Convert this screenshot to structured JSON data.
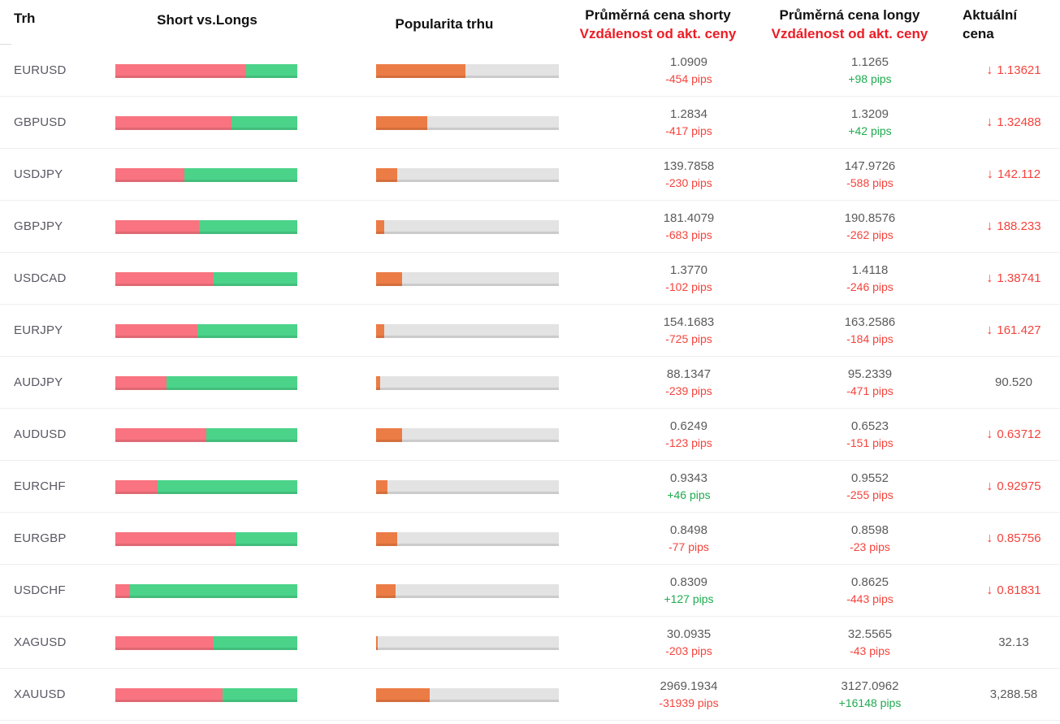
{
  "header": {
    "market": "Trh",
    "short_vs_longs": "Short vs.Longs",
    "popularity": "Popularita trhu",
    "avg_short": "Průměrná cena shorty",
    "avg_long": "Průměrná cena longy",
    "distance": "Vzdálenost od akt. ceny",
    "current_line1": "Aktuální",
    "current_line2": "cena"
  },
  "colors": {
    "bar_short": "#f97480",
    "bar_long": "#4bd38a",
    "bar_popularity": "#ec7c45",
    "bar_track": "#e3e3e3",
    "pips_negative": "#f4433c",
    "pips_positive": "#1fab4f",
    "header_red": "#ed1c24"
  },
  "rows": [
    {
      "market": "EURUSD",
      "short_pct": 72,
      "long_pct": 28,
      "popularity_pct": 49,
      "short_price": "1.0909",
      "short_pips": "-454 pips",
      "long_price": "1.1265",
      "long_pips": "+98 pips",
      "current_price": "1.13621",
      "current_down": true
    },
    {
      "market": "GBPUSD",
      "short_pct": 64,
      "long_pct": 36,
      "popularity_pct": 28,
      "short_price": "1.2834",
      "short_pips": "-417 pips",
      "long_price": "1.3209",
      "long_pips": "+42 pips",
      "current_price": "1.32488",
      "current_down": true
    },
    {
      "market": "USDJPY",
      "short_pct": 38,
      "long_pct": 62,
      "popularity_pct": 11.5,
      "short_price": "139.7858",
      "short_pips": "-230 pips",
      "long_price": "147.9726",
      "long_pips": "-588 pips",
      "current_price": "142.112",
      "current_down": true
    },
    {
      "market": "GBPJPY",
      "short_pct": 46,
      "long_pct": 54,
      "popularity_pct": 4.5,
      "short_price": "181.4079",
      "short_pips": "-683 pips",
      "long_price": "190.8576",
      "long_pips": "-262 pips",
      "current_price": "188.233",
      "current_down": true
    },
    {
      "market": "USDCAD",
      "short_pct": 54,
      "long_pct": 46,
      "popularity_pct": 14,
      "short_price": "1.3770",
      "short_pips": "-102 pips",
      "long_price": "1.4118",
      "long_pips": "-246 pips",
      "current_price": "1.38741",
      "current_down": true
    },
    {
      "market": "EURJPY",
      "short_pct": 45,
      "long_pct": 55,
      "popularity_pct": 4.5,
      "short_price": "154.1683",
      "short_pips": "-725 pips",
      "long_price": "163.2586",
      "long_pips": "-184 pips",
      "current_price": "161.427",
      "current_down": true
    },
    {
      "market": "AUDJPY",
      "short_pct": 28,
      "long_pct": 72,
      "popularity_pct": 2,
      "short_price": "88.1347",
      "short_pips": "-239 pips",
      "long_price": "95.2339",
      "long_pips": "-471 pips",
      "current_price": "90.520",
      "current_down": false
    },
    {
      "market": "AUDUSD",
      "short_pct": 50,
      "long_pct": 50,
      "popularity_pct": 14,
      "short_price": "0.6249",
      "short_pips": "-123 pips",
      "long_price": "0.6523",
      "long_pips": "-151 pips",
      "current_price": "0.63712",
      "current_down": true
    },
    {
      "market": "EURCHF",
      "short_pct": 23,
      "long_pct": 77,
      "popularity_pct": 6,
      "short_price": "0.9343",
      "short_pips": "+46 pips",
      "long_price": "0.9552",
      "long_pips": "-255 pips",
      "current_price": "0.92975",
      "current_down": true
    },
    {
      "market": "EURGBP",
      "short_pct": 66,
      "long_pct": 34,
      "popularity_pct": 11.5,
      "short_price": "0.8498",
      "short_pips": "-77 pips",
      "long_price": "0.8598",
      "long_pips": "-23 pips",
      "current_price": "0.85756",
      "current_down": true
    },
    {
      "market": "USDCHF",
      "short_pct": 8,
      "long_pct": 92,
      "popularity_pct": 10.5,
      "short_price": "0.8309",
      "short_pips": "+127 pips",
      "long_price": "0.8625",
      "long_pips": "-443 pips",
      "current_price": "0.81831",
      "current_down": true
    },
    {
      "market": "XAGUSD",
      "short_pct": 54,
      "long_pct": 46,
      "popularity_pct": 1,
      "short_price": "30.0935",
      "short_pips": "-203 pips",
      "long_price": "32.5565",
      "long_pips": "-43 pips",
      "current_price": "32.13",
      "current_down": false
    },
    {
      "market": "XAUUSD",
      "short_pct": 59,
      "long_pct": 41,
      "popularity_pct": 29.5,
      "short_price": "2969.1934",
      "short_pips": "-31939 pips",
      "long_price": "3127.0962",
      "long_pips": "+16148 pips",
      "current_price": "3,288.58",
      "current_down": false
    }
  ]
}
